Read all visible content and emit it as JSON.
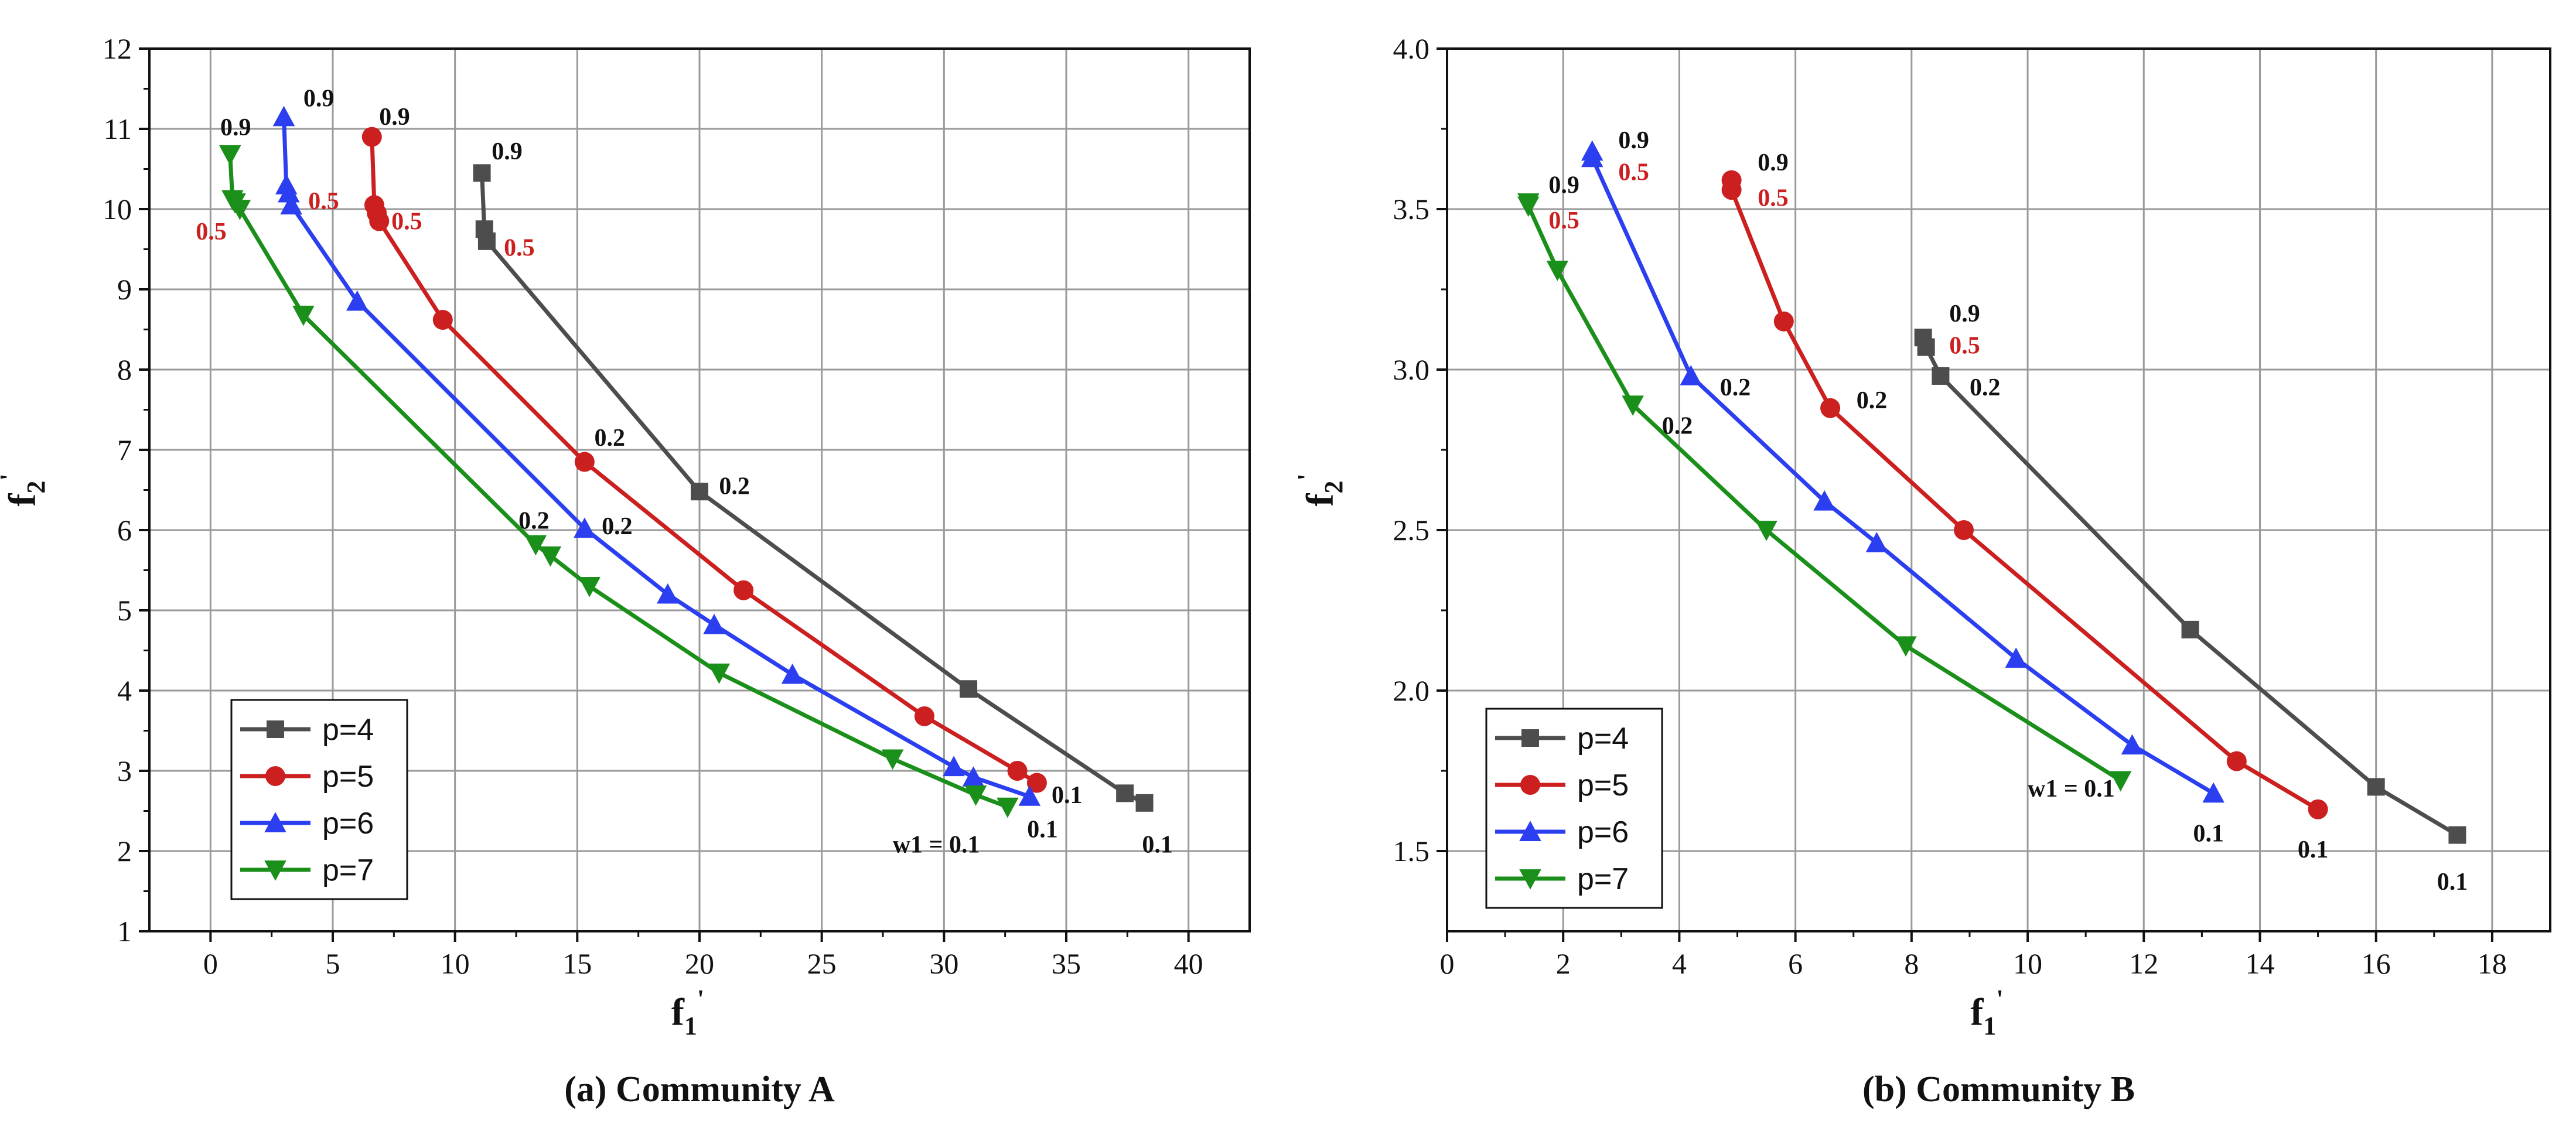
{
  "chart_data": [
    {
      "type": "line",
      "caption": "(a) Community A",
      "xlabel": "f",
      "xlabel_sub": "1",
      "ylabel": "f",
      "ylabel_sub": "2",
      "prime": "'",
      "xlim": [
        -2.5,
        42.5
      ],
      "ylim": [
        1,
        12
      ],
      "xticks": [
        0,
        5,
        10,
        15,
        20,
        25,
        30,
        35,
        40
      ],
      "yticks": [
        1,
        2,
        3,
        4,
        5,
        6,
        7,
        8,
        9,
        10,
        11,
        12
      ],
      "series": [
        {
          "name": "p=4",
          "color": "#4d4d4d",
          "marker": "square",
          "x": [
            11.1,
            11.2,
            11.3,
            20.0,
            31.0,
            37.4,
            38.2
          ],
          "y": [
            10.45,
            9.75,
            9.6,
            6.48,
            4.02,
            2.72,
            2.6
          ]
        },
        {
          "name": "p=5",
          "color": "#cc1f1f",
          "marker": "circle",
          "x": [
            6.6,
            6.7,
            6.8,
            6.9,
            9.5,
            15.3,
            21.8,
            29.2,
            33.0,
            33.8
          ],
          "y": [
            10.9,
            10.05,
            9.95,
            9.85,
            8.62,
            6.85,
            5.25,
            3.68,
            3.0,
            2.85
          ]
        },
        {
          "name": "p=6",
          "color": "#2b3ff0",
          "marker": "triangle-up",
          "x": [
            3.0,
            3.1,
            3.2,
            3.3,
            6.0,
            15.3,
            18.7,
            20.6,
            23.8,
            30.4,
            31.2,
            33.5
          ],
          "y": [
            11.15,
            10.3,
            10.2,
            10.05,
            8.85,
            6.02,
            5.2,
            4.82,
            4.2,
            3.05,
            2.92,
            2.68
          ]
        },
        {
          "name": "p=7",
          "color": "#1a8f1a",
          "marker": "triangle-down",
          "x": [
            0.8,
            0.9,
            1.0,
            1.2,
            3.8,
            13.3,
            13.9,
            15.5,
            20.8,
            27.9,
            31.3,
            32.6
          ],
          "y": [
            10.68,
            10.12,
            10.08,
            10.0,
            8.68,
            5.82,
            5.68,
            5.3,
            4.22,
            3.15,
            2.7,
            2.55
          ]
        }
      ],
      "annotations": [
        {
          "text": "0.9",
          "x": 0.4,
          "y": 10.92,
          "color": "#111111"
        },
        {
          "text": "0.9",
          "x": 3.8,
          "y": 11.28,
          "color": "#111111"
        },
        {
          "text": "0.9",
          "x": 6.9,
          "y": 11.05,
          "color": "#111111"
        },
        {
          "text": "0.9",
          "x": 11.5,
          "y": 10.62,
          "color": "#111111"
        },
        {
          "text": "0.5",
          "x": -0.6,
          "y": 9.62,
          "color": "#cc1f1f"
        },
        {
          "text": "0.5",
          "x": 4.0,
          "y": 10.0,
          "color": "#cc1f1f"
        },
        {
          "text": "0.5",
          "x": 7.4,
          "y": 9.75,
          "color": "#cc1f1f"
        },
        {
          "text": "0.5",
          "x": 12.0,
          "y": 9.42,
          "color": "#cc1f1f"
        },
        {
          "text": "0.2",
          "x": 12.6,
          "y": 6.02,
          "color": "#111111"
        },
        {
          "text": "0.2",
          "x": 16.0,
          "y": 5.95,
          "color": "#111111"
        },
        {
          "text": "0.2",
          "x": 15.7,
          "y": 7.05,
          "color": "#111111"
        },
        {
          "text": "0.2",
          "x": 20.8,
          "y": 6.45,
          "color": "#111111"
        },
        {
          "text": "0.1",
          "x": 34.4,
          "y": 2.6,
          "color": "#111111"
        },
        {
          "text": "0.1",
          "x": 33.4,
          "y": 2.17,
          "color": "#111111"
        },
        {
          "text": "0.1",
          "x": 38.1,
          "y": 1.98,
          "color": "#111111"
        },
        {
          "text": "w1 = 0.1",
          "x": 27.9,
          "y": 1.98,
          "color": "#111111"
        }
      ],
      "legend": "bottom-left"
    },
    {
      "type": "line",
      "caption": "(b) Community B",
      "xlabel": "f",
      "xlabel_sub": "1",
      "ylabel": "f",
      "ylabel_sub": "2",
      "prime": "'",
      "xlim": [
        0,
        19
      ],
      "ylim": [
        1.25,
        4.0
      ],
      "xticks": [
        0,
        2,
        4,
        6,
        8,
        10,
        12,
        14,
        16,
        18
      ],
      "yticks": [
        1.5,
        2.0,
        2.5,
        3.0,
        3.5,
        4.0
      ],
      "series": [
        {
          "name": "p=4",
          "color": "#4d4d4d",
          "marker": "square",
          "x": [
            8.2,
            8.25,
            8.5,
            12.8,
            16.0,
            17.4
          ],
          "y": [
            3.1,
            3.07,
            2.98,
            2.19,
            1.7,
            1.55
          ]
        },
        {
          "name": "p=5",
          "color": "#cc1f1f",
          "marker": "circle",
          "x": [
            4.9,
            4.9,
            5.8,
            6.6,
            8.9,
            13.6,
            15.0
          ],
          "y": [
            3.59,
            3.56,
            3.15,
            2.88,
            2.5,
            1.78,
            1.63
          ]
        },
        {
          "name": "p=6",
          "color": "#2b3ff0",
          "marker": "triangle-up",
          "x": [
            2.5,
            2.5,
            4.2,
            6.5,
            7.4,
            9.8,
            11.8,
            13.2
          ],
          "y": [
            3.68,
            3.66,
            2.98,
            2.59,
            2.46,
            2.1,
            1.83,
            1.68
          ]
        },
        {
          "name": "p=7",
          "color": "#1a8f1a",
          "marker": "triangle-down",
          "x": [
            1.4,
            1.4,
            1.9,
            3.2,
            5.5,
            7.9,
            11.6
          ],
          "y": [
            3.52,
            3.51,
            3.31,
            2.89,
            2.5,
            2.14,
            1.72
          ]
        }
      ],
      "annotations": [
        {
          "text": "0.9",
          "x": 1.75,
          "y": 3.55,
          "color": "#111111"
        },
        {
          "text": "0.5",
          "x": 1.75,
          "y": 3.44,
          "color": "#cc1f1f"
        },
        {
          "text": "0.9",
          "x": 2.95,
          "y": 3.69,
          "color": "#111111"
        },
        {
          "text": "0.5",
          "x": 2.95,
          "y": 3.59,
          "color": "#cc1f1f"
        },
        {
          "text": "0.9",
          "x": 5.35,
          "y": 3.62,
          "color": "#111111"
        },
        {
          "text": "0.5",
          "x": 5.35,
          "y": 3.51,
          "color": "#cc1f1f"
        },
        {
          "text": "0.9",
          "x": 8.65,
          "y": 3.15,
          "color": "#111111"
        },
        {
          "text": "0.5",
          "x": 8.65,
          "y": 3.05,
          "color": "#cc1f1f"
        },
        {
          "text": "0.2",
          "x": 3.7,
          "y": 2.8,
          "color": "#111111"
        },
        {
          "text": "0.2",
          "x": 4.7,
          "y": 2.92,
          "color": "#111111"
        },
        {
          "text": "0.2",
          "x": 7.05,
          "y": 2.88,
          "color": "#111111"
        },
        {
          "text": "0.2",
          "x": 9.0,
          "y": 2.92,
          "color": "#111111"
        },
        {
          "text": "w1 = 0.1",
          "x": 10.0,
          "y": 1.67,
          "color": "#111111"
        },
        {
          "text": "0.1",
          "x": 12.85,
          "y": 1.53,
          "color": "#111111"
        },
        {
          "text": "0.1",
          "x": 14.65,
          "y": 1.48,
          "color": "#111111"
        },
        {
          "text": "0.1",
          "x": 17.05,
          "y": 1.38,
          "color": "#111111"
        }
      ],
      "legend": "bottom-left"
    }
  ]
}
